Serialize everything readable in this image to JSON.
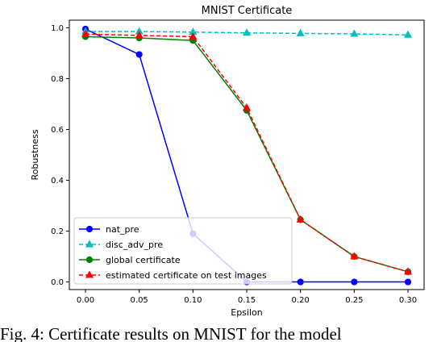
{
  "chart_data": {
    "type": "line",
    "title": "MNIST Certificate",
    "xlabel": "Epsilon",
    "ylabel": "Robustness",
    "x": [
      0.0,
      0.05,
      0.1,
      0.15,
      0.2,
      0.25,
      0.3
    ],
    "xlim": [
      -0.015,
      0.315
    ],
    "ylim": [
      -0.03,
      1.03
    ],
    "xticks": [
      "0.00",
      "0.05",
      "0.10",
      "0.15",
      "0.20",
      "0.25",
      "0.30"
    ],
    "yticks": [
      "0.0",
      "0.2",
      "0.4",
      "0.6",
      "0.8",
      "1.0"
    ],
    "xtick_values": [
      0.0,
      0.05,
      0.1,
      0.15,
      0.2,
      0.25,
      0.3
    ],
    "ytick_values": [
      0.0,
      0.2,
      0.4,
      0.6,
      0.8,
      1.0
    ],
    "grid": false,
    "legend_position": "bottom-left",
    "series": [
      {
        "name": "nat_pre",
        "values": [
          0.995,
          0.895,
          0.19,
          0.0,
          0.0,
          0.0,
          0.0
        ],
        "color": "#0000ff",
        "marker": "circle",
        "dash": "solid"
      },
      {
        "name": "disc_adv_pre",
        "values": [
          0.985,
          0.985,
          0.983,
          0.98,
          0.978,
          0.976,
          0.972
        ],
        "color": "#00bfbf",
        "marker": "triangle",
        "dash": "dashed"
      },
      {
        "name": "global certificate",
        "values": [
          0.965,
          0.96,
          0.95,
          0.675,
          0.245,
          0.1,
          0.04
        ],
        "color": "#008000",
        "marker": "circle",
        "dash": "solid"
      },
      {
        "name": "estimated certificate on test images",
        "values": [
          0.975,
          0.97,
          0.965,
          0.685,
          0.245,
          0.1,
          0.04
        ],
        "color": "#ff0000",
        "marker": "triangle",
        "dash": "dashed"
      }
    ]
  },
  "caption": "Fig. 4:  Certificate results on MNIST for the model"
}
